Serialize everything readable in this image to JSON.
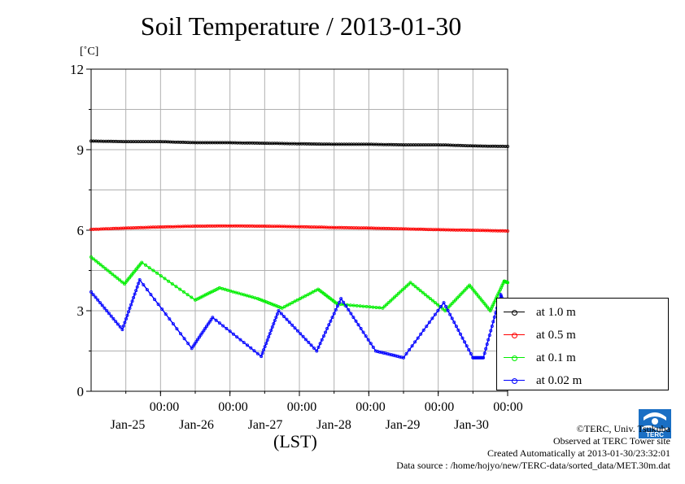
{
  "chart_data": {
    "type": "line",
    "title": "Soil Temperature / 2013-01-30",
    "ylabel": "[˚C]",
    "xlabel": "(LST)",
    "ylim": [
      0,
      12
    ],
    "xlim": [
      0,
      6
    ],
    "y_ticks": [
      "0",
      "3",
      "6",
      "9",
      "12"
    ],
    "x_ticks": [
      {
        "time": "00:00",
        "date": "Jan-25",
        "x": 1
      },
      {
        "time": "00:00",
        "date": "Jan-26",
        "x": 2
      },
      {
        "time": "00:00",
        "date": "Jan-27",
        "x": 3
      },
      {
        "time": "00:00",
        "date": "Jan-28",
        "x": 4
      },
      {
        "time": "00:00",
        "date": "Jan-29",
        "x": 5
      },
      {
        "time": "00:00",
        "date": "Jan-30",
        "x": 6
      }
    ],
    "grid": true,
    "legend_position": "right",
    "series": [
      {
        "name": "at 1.0 m",
        "color": "#000000",
        "x": [
          0,
          0.5,
          1,
          1.5,
          2,
          2.5,
          3,
          3.5,
          4,
          4.5,
          5,
          5.5,
          6
        ],
        "y": [
          9.32,
          9.3,
          9.3,
          9.26,
          9.26,
          9.24,
          9.22,
          9.2,
          9.2,
          9.18,
          9.18,
          9.14,
          9.12
        ]
      },
      {
        "name": "at 0.5 m",
        "color": "#ff0000",
        "x": [
          0,
          0.5,
          1,
          1.5,
          2,
          2.5,
          3,
          3.5,
          4,
          4.5,
          5,
          5.5,
          6
        ],
        "y": [
          6.03,
          6.08,
          6.12,
          6.15,
          6.16,
          6.15,
          6.13,
          6.1,
          6.08,
          6.05,
          6.02,
          6.0,
          5.97
        ]
      },
      {
        "name": "at 0.1 m",
        "color": "#00ee00",
        "x": [
          0,
          0.48,
          0.73,
          1.5,
          1.85,
          2.4,
          2.75,
          3.27,
          3.55,
          4.2,
          4.6,
          5.1,
          5.45,
          5.75,
          5.95,
          6
        ],
        "y": [
          5.0,
          4.0,
          4.8,
          3.4,
          3.85,
          3.45,
          3.1,
          3.8,
          3.25,
          3.1,
          4.05,
          3.0,
          3.95,
          3.0,
          4.1,
          4.05
        ]
      },
      {
        "name": "at 0.02 m",
        "color": "#0000ff",
        "x": [
          0,
          0.45,
          0.7,
          1.45,
          1.75,
          2.45,
          2.7,
          3.25,
          3.6,
          4.1,
          4.5,
          5.08,
          5.5,
          5.65,
          5.9,
          6
        ],
        "y": [
          3.7,
          2.3,
          4.15,
          1.6,
          2.75,
          1.3,
          3.0,
          1.5,
          3.45,
          1.5,
          1.25,
          3.3,
          1.25,
          1.25,
          3.6,
          2.8
        ]
      }
    ]
  },
  "credits": {
    "copyright": "©TERC, Univ. Tsukuba",
    "observed": "Observed at TERC Tower site",
    "created": "Created Automatically at 2013-01-30/23:32:01",
    "source": "Data source : /home/hojyo/new/TERC-data/sorted_data/MET.30m.dat"
  },
  "logo": {
    "text": "TERC",
    "color": "#1a6fc4"
  }
}
